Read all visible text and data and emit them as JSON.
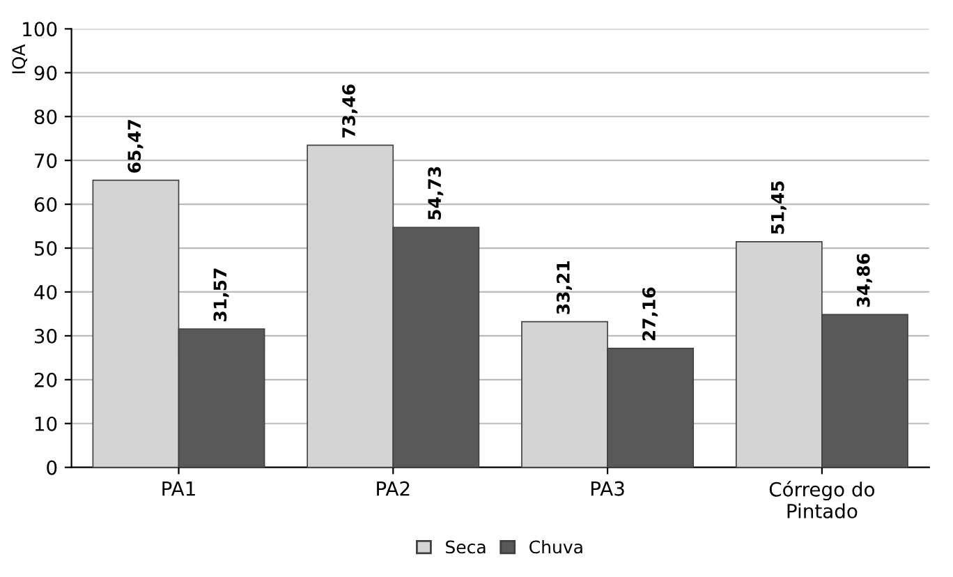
{
  "chart_data": {
    "type": "bar",
    "ylabel": "IQA",
    "categories": [
      "PA1",
      "PA2",
      "PA3",
      "Córrego do\nPintado"
    ],
    "series": [
      {
        "name": "Seca",
        "color": "#d4d4d4",
        "values": [
          65.47,
          73.46,
          33.21,
          51.45
        ],
        "value_labels": [
          "65,47",
          "73,46",
          "33,21",
          "51,45"
        ]
      },
      {
        "name": "Chuva",
        "color": "#595959",
        "values": [
          31.57,
          54.73,
          27.16,
          34.86
        ],
        "value_labels": [
          "31,57",
          "54,73",
          "27,16",
          "34,86"
        ]
      }
    ],
    "ylim": [
      0,
      100
    ],
    "yticks": [
      0,
      10,
      20,
      30,
      40,
      50,
      60,
      70,
      80,
      90,
      100
    ],
    "grid": "y",
    "legend": "bottom"
  }
}
